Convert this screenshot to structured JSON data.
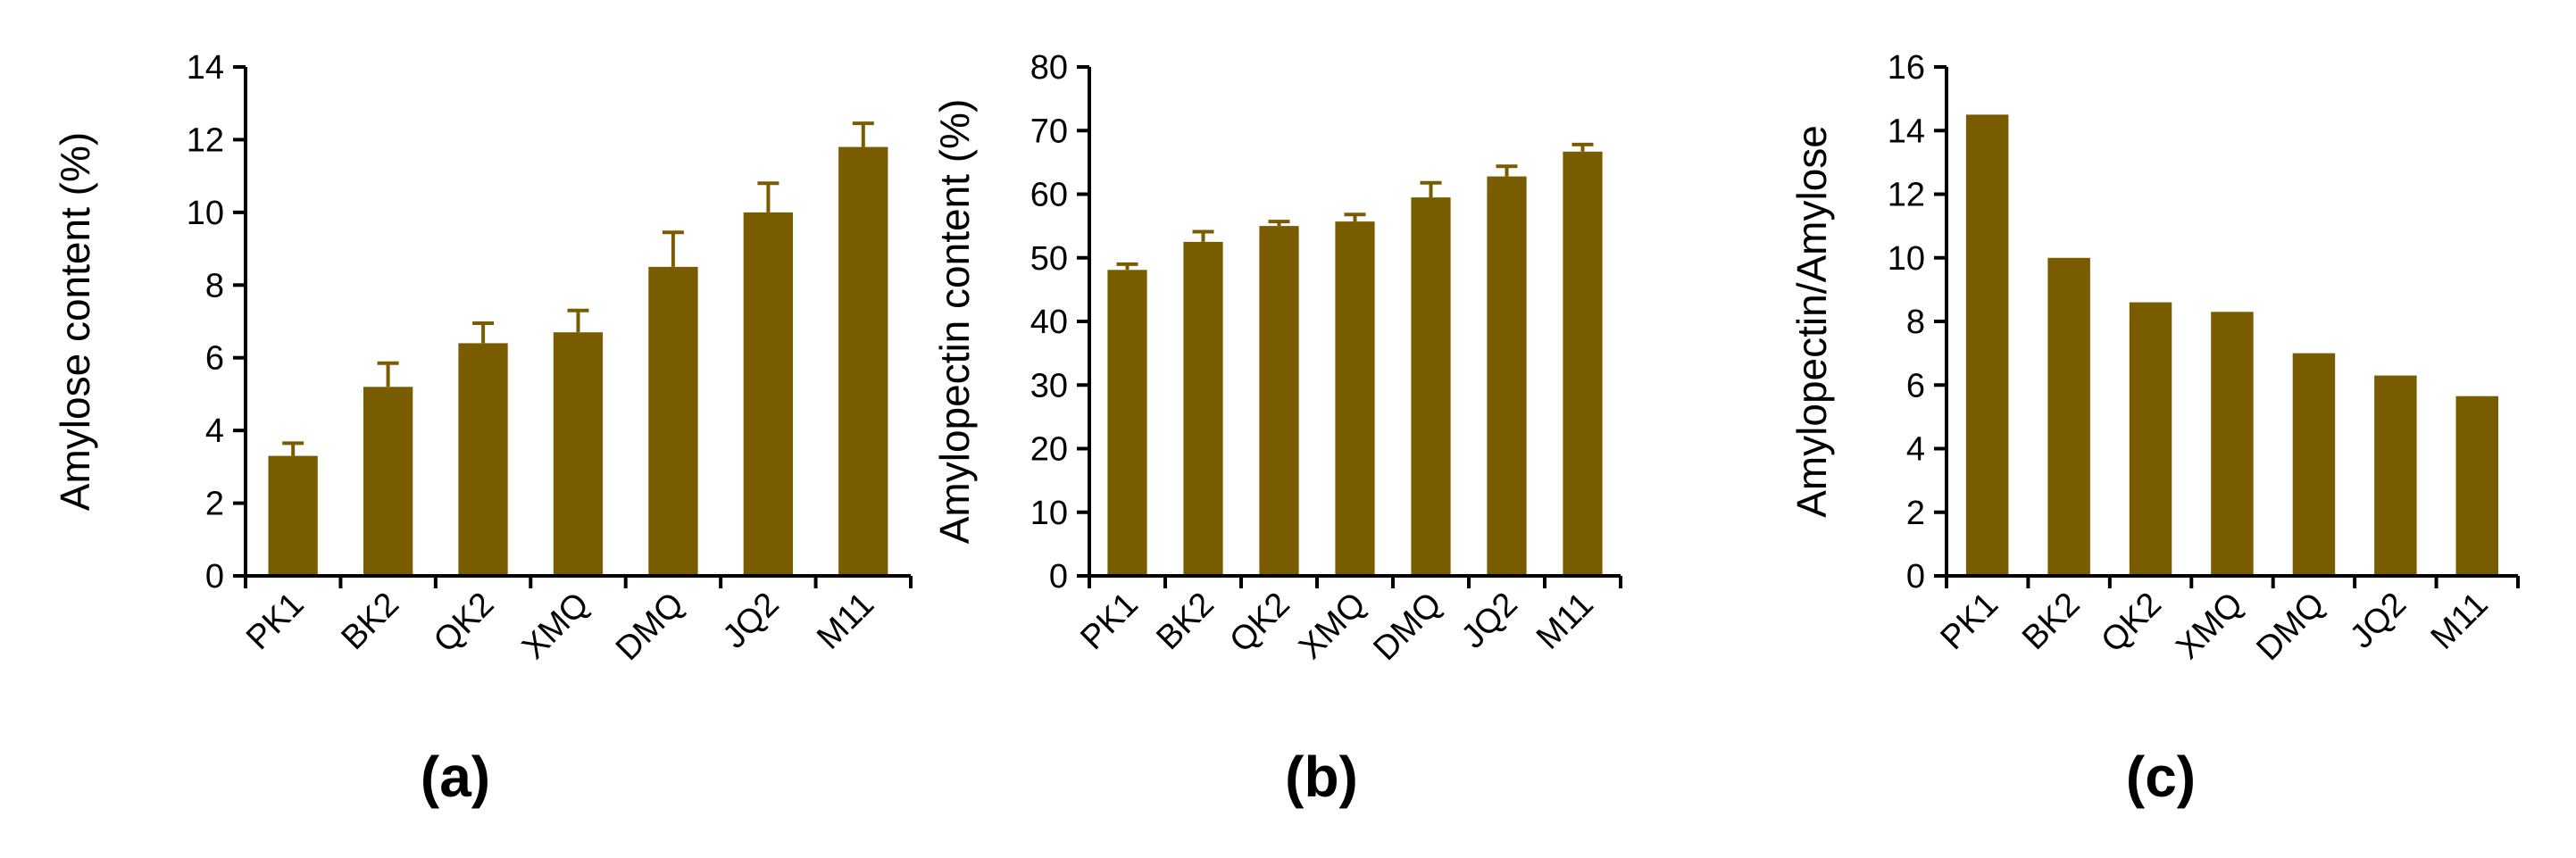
{
  "colors": {
    "bar": "#7a5c00",
    "axis": "#000000"
  },
  "chart_data": [
    {
      "type": "bar",
      "panel_label": "(a)",
      "ylabel": "Amylose content (%)",
      "categories": [
        "PK1",
        "BK2",
        "QK2",
        "XMQ",
        "DMQ",
        "JQ2",
        "M11"
      ],
      "values": [
        3.3,
        5.2,
        6.4,
        6.7,
        8.5,
        10.0,
        11.8
      ],
      "errors": [
        0.35,
        0.65,
        0.55,
        0.6,
        0.95,
        0.8,
        0.65
      ],
      "ylim": [
        0,
        14
      ],
      "yticks": [
        0,
        2,
        4,
        6,
        8,
        10,
        12,
        14
      ],
      "grid": false
    },
    {
      "type": "bar",
      "panel_label": "(b)",
      "ylabel": "Amylopectin content (%)",
      "categories": [
        "PK1",
        "BK2",
        "QK2",
        "XMQ",
        "DMQ",
        "JQ2",
        "M11"
      ],
      "values": [
        48.1,
        52.5,
        55.0,
        55.7,
        59.5,
        62.8,
        66.7
      ],
      "errors": [
        0.9,
        1.6,
        0.7,
        1.1,
        2.3,
        1.6,
        1.1
      ],
      "ylim": [
        0,
        80
      ],
      "yticks": [
        0,
        10,
        20,
        30,
        40,
        50,
        60,
        70,
        80
      ],
      "grid": false
    },
    {
      "type": "bar",
      "panel_label": "(c)",
      "ylabel": "Amylopectin/Amylose",
      "categories": [
        "PK1",
        "BK2",
        "QK2",
        "XMQ",
        "DMQ",
        "JQ2",
        "M11"
      ],
      "values": [
        14.5,
        10.0,
        8.6,
        8.3,
        7.0,
        6.3,
        5.65
      ],
      "ylim": [
        0,
        16
      ],
      "yticks": [
        0,
        2,
        4,
        6,
        8,
        10,
        12,
        14,
        16
      ],
      "grid": false
    }
  ]
}
